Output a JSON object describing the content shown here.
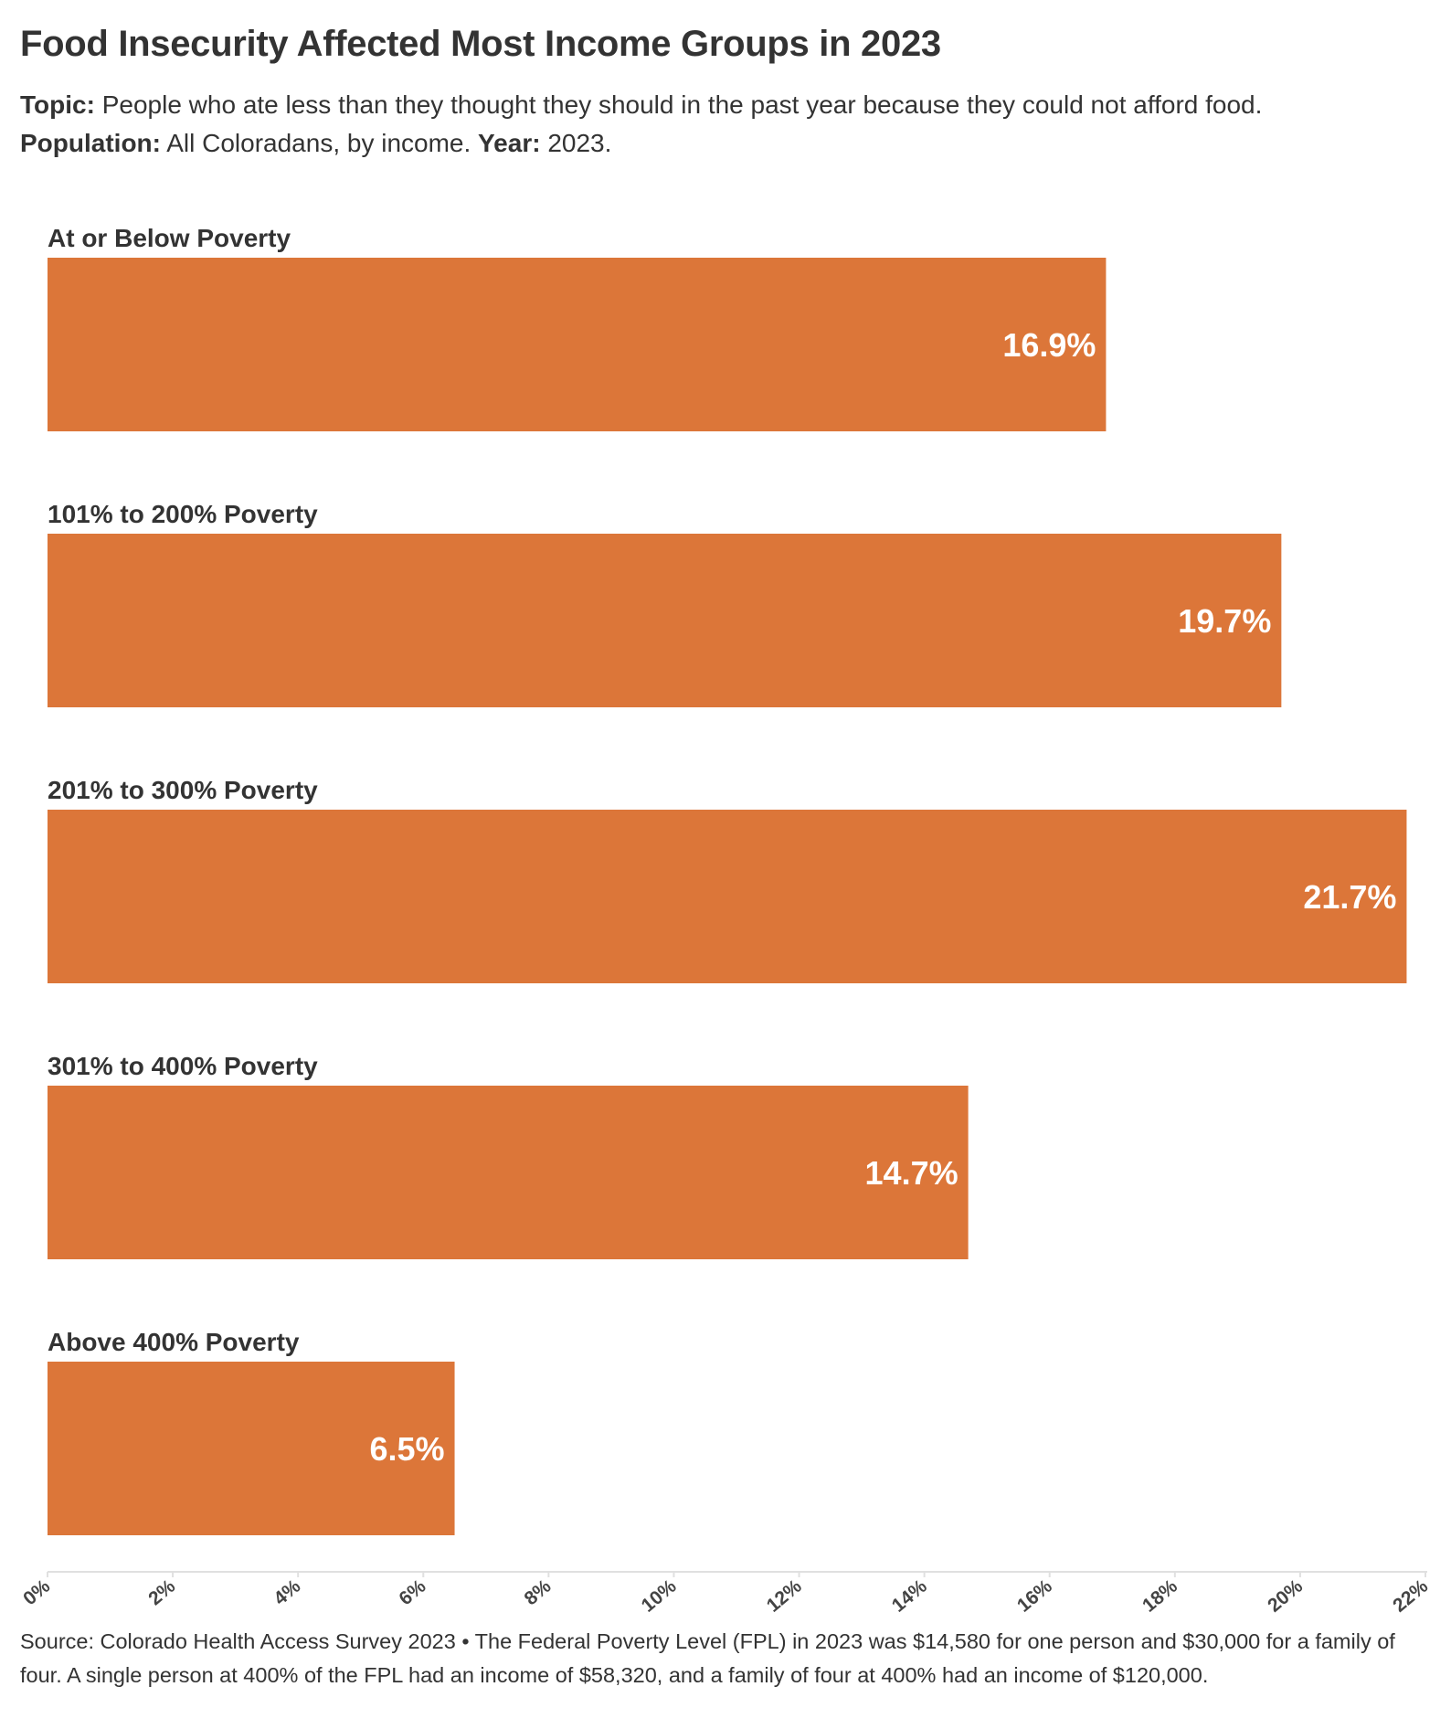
{
  "title": "Food Insecurity Affected Most Income Groups in 2023",
  "subtitle": {
    "topic_label": "Topic:",
    "topic_text": "People who ate less than they thought they should in the past year because they could not afford food.",
    "population_label": "Population:",
    "population_text": "All Coloradans, by income.",
    "year_label": "Year:",
    "year_text": "2023."
  },
  "colors": {
    "bar": "#DC7639",
    "value_label": "#ffffff",
    "axis": "#e0e0e0",
    "text": "#333333"
  },
  "chart_data": {
    "type": "bar",
    "orientation": "horizontal",
    "categories": [
      "At or Below Poverty",
      "101% to 200% Poverty",
      "201% to 300% Poverty",
      "301% to 400% Poverty",
      "Above 400% Poverty"
    ],
    "values": [
      16.9,
      19.7,
      21.7,
      14.7,
      6.5
    ],
    "value_labels": [
      "16.9%",
      "19.7%",
      "21.7%",
      "14.7%",
      "6.5%"
    ],
    "xlim": [
      0,
      22
    ],
    "x_ticks": [
      "0%",
      "2%",
      "4%",
      "6%",
      "8%",
      "10%",
      "12%",
      "14%",
      "16%",
      "18%",
      "20%",
      "22%"
    ],
    "grid": false
  },
  "source": "Source: Colorado Health Access Survey 2023 • The Federal Poverty Level (FPL) in 2023 was $14,580 for one person and $30,000 for a family of four. A single person at 400% of the FPL had an income of $58,320, and a family of four at 400% had an income of $120,000."
}
